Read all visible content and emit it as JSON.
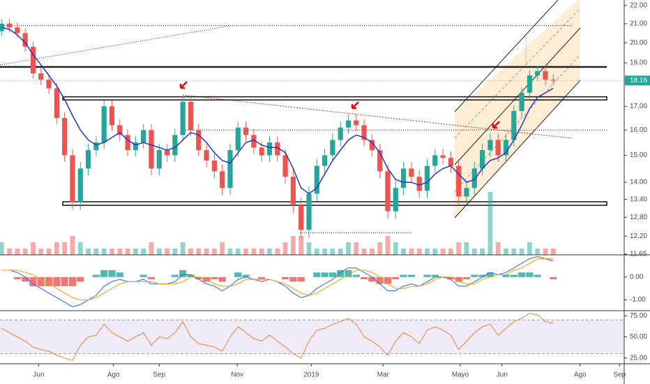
{
  "chart_data": {
    "type": "candlestick",
    "log_scale": true,
    "ylim": [
      11.63,
      22.31
    ],
    "yticks": [
      {
        "value": 22,
        "label": "22.00"
      },
      {
        "value": 21,
        "label": "21.00"
      },
      {
        "value": 20,
        "label": "20.00"
      },
      {
        "value": 19,
        "label": "19.00"
      },
      {
        "value": 17,
        "label": "17.00"
      },
      {
        "value": 16,
        "label": "16.00"
      },
      {
        "value": 15,
        "label": "15.00"
      },
      {
        "value": 14,
        "label": "14.00"
      },
      {
        "value": 13.4,
        "label": "13.40"
      },
      {
        "value": 12.8,
        "label": "12.80"
      },
      {
        "value": 12.2,
        "label": "12.20"
      },
      {
        "value": 11.65,
        "label": "11.65"
      }
    ],
    "xlim": [
      -0.2,
      79
    ],
    "xticks": [
      {
        "value": 4.7,
        "label": "Jun"
      },
      {
        "value": 14.2,
        "label": "Ago"
      },
      {
        "value": 20,
        "label": "Sep"
      },
      {
        "value": 29.9,
        "label": "Nov"
      },
      {
        "value": 39.3,
        "label": "2019"
      },
      {
        "value": 48.4,
        "label": "Mar"
      },
      {
        "value": 58.2,
        "label": "Mayo"
      },
      {
        "value": 63.5,
        "label": "Jun"
      },
      {
        "value": 73.4,
        "label": "Ago"
      },
      {
        "value": 78.4,
        "label": "Sep"
      }
    ],
    "up_color": "#26a69a",
    "down_color": "#ef5350",
    "open": [
      20.6,
      21.0,
      20.8,
      20.5,
      19.8,
      18.5,
      18.2,
      17.8,
      16.5,
      15.0,
      13.3,
      14.5,
      15.2,
      15.5,
      17.0,
      16.2,
      15.8,
      15.2,
      15.5,
      16.0,
      14.5,
      15.2,
      15.0,
      15.8,
      17.2,
      16.0,
      15.2,
      14.8,
      14.4,
      13.8,
      15.2,
      16.1,
      15.8,
      15.3,
      15.0,
      15.5,
      15.0,
      14.2,
      13.2,
      12.4,
      13.6,
      14.6,
      15.0,
      15.6,
      16.1,
      16.4,
      16.2,
      15.6,
      15.2,
      14.4,
      13.0,
      13.8,
      14.5,
      14.2,
      13.7,
      14.6,
      15.0,
      14.9,
      14.6,
      13.5,
      13.8,
      14.5,
      15.2,
      15.6,
      15.0,
      15.6,
      16.8,
      17.6,
      18.4,
      18.6,
      18.2
    ],
    "high": [
      21.25,
      21.25,
      21.05,
      20.75,
      20.05,
      18.75,
      18.45,
      18.05,
      16.75,
      15.25,
      14.75,
      15.45,
      15.75,
      17.25,
      17.25,
      16.45,
      16.05,
      15.75,
      16.25,
      16.25,
      15.45,
      15.45,
      16.05,
      17.45,
      17.45,
      16.25,
      15.45,
      15.05,
      14.65,
      15.45,
      16.35,
      16.35,
      16.05,
      15.55,
      15.75,
      15.75,
      15.25,
      14.45,
      13.45,
      13.85,
      14.85,
      15.25,
      15.85,
      16.35,
      16.65,
      16.65,
      16.45,
      15.85,
      15.45,
      14.65,
      14.05,
      14.75,
      14.75,
      14.45,
      14.85,
      15.25,
      15.25,
      15.15,
      14.85,
      14.05,
      14.75,
      15.45,
      15.85,
      15.85,
      15.85,
      17.05,
      17.85,
      18.65,
      18.85,
      18.85,
      18.45
    ],
    "low": [
      20.35,
      20.55,
      20.25,
      19.55,
      18.25,
      17.95,
      17.55,
      16.25,
      14.75,
      13.05,
      13.05,
      14.25,
      14.95,
      15.25,
      15.95,
      15.55,
      14.95,
      14.95,
      15.25,
      14.25,
      14.25,
      14.75,
      14.75,
      15.55,
      15.75,
      14.95,
      14.55,
      14.15,
      13.55,
      13.55,
      14.95,
      15.55,
      15.05,
      14.75,
      14.75,
      14.75,
      13.95,
      12.95,
      12.15,
      12.15,
      13.35,
      14.35,
      14.75,
      15.35,
      15.85,
      15.95,
      15.35,
      14.95,
      14.15,
      12.75,
      12.75,
      13.55,
      13.95,
      13.45,
      13.45,
      14.35,
      14.65,
      14.35,
      13.25,
      13.25,
      13.55,
      14.25,
      14.95,
      14.75,
      14.75,
      15.35,
      16.55,
      17.35,
      18.15,
      17.95,
      17.95
    ],
    "close": [
      21.0,
      20.8,
      20.5,
      19.8,
      18.5,
      18.2,
      17.8,
      16.5,
      15.0,
      13.3,
      14.5,
      15.2,
      15.5,
      17.0,
      16.2,
      15.8,
      15.2,
      15.5,
      16.0,
      14.5,
      15.2,
      15.0,
      15.8,
      17.2,
      16.0,
      15.2,
      14.8,
      14.4,
      13.8,
      15.2,
      16.1,
      15.8,
      15.3,
      15.0,
      15.5,
      15.0,
      14.2,
      13.2,
      12.4,
      13.6,
      14.6,
      15.0,
      15.6,
      16.1,
      16.4,
      16.2,
      15.6,
      15.2,
      14.4,
      13.0,
      13.8,
      14.5,
      14.2,
      13.7,
      14.6,
      15.0,
      14.9,
      14.6,
      13.5,
      13.8,
      14.5,
      15.2,
      15.6,
      15.0,
      15.6,
      16.8,
      17.6,
      18.4,
      18.6,
      18.2,
      18.16
    ],
    "ma": {
      "color": "#2633c9",
      "values": [
        20.8,
        20.7,
        20.4,
        20.0,
        19.4,
        18.9,
        18.4,
        17.9,
        17.3,
        16.6,
        16.0,
        15.6,
        15.4,
        15.5,
        15.7,
        15.9,
        15.6,
        15.4,
        15.5,
        15.4,
        15.3,
        15.2,
        15.3,
        15.6,
        15.9,
        15.8,
        15.5,
        15.1,
        14.8,
        14.7,
        15.1,
        15.5,
        15.6,
        15.4,
        15.3,
        15.3,
        15.1,
        14.5,
        13.8,
        13.6,
        13.8,
        14.3,
        14.8,
        15.2,
        15.6,
        15.8,
        15.7,
        15.5,
        15.1,
        14.5,
        14.1,
        14.0,
        14.0,
        13.9,
        14.0,
        14.3,
        14.5,
        14.6,
        14.3,
        14.0,
        14.1,
        14.5,
        14.8,
        14.9,
        15.1,
        15.6,
        16.2,
        16.9,
        17.4,
        17.6,
        17.8
      ]
    },
    "volume": [
      2,
      1,
      1,
      1,
      2,
      1,
      1,
      2,
      2,
      3,
      2,
      1,
      1,
      1,
      1,
      1,
      1,
      1,
      1,
      2,
      1,
      1,
      1,
      2,
      1,
      1,
      1,
      1,
      2,
      1,
      1,
      1,
      1,
      1,
      1,
      1,
      2,
      3,
      3,
      2,
      1,
      1,
      1,
      1,
      2,
      2,
      1,
      1,
      2,
      3,
      2,
      1,
      1,
      1,
      1,
      1,
      1,
      1,
      2,
      2,
      1,
      1,
      10,
      2,
      1,
      1,
      1,
      2,
      1,
      1,
      1
    ],
    "levels": [
      {
        "value": 20.9,
        "style": "dotted"
      },
      {
        "value": 18.8,
        "style": "solid"
      },
      {
        "value": 16.0,
        "style": "dotted"
      },
      {
        "value": 12.3,
        "style": "dotted"
      }
    ],
    "zones": [
      {
        "low": 17.28,
        "high": 17.42
      },
      {
        "low": 13.2,
        "high": 13.32
      }
    ],
    "last_price": 18.16,
    "macd": {
      "ylim": [
        -1.47,
        0.97
      ],
      "yticks": [
        {
          "value": 0,
          "label": "0.00"
        },
        {
          "value": -1,
          "label": "-1.00"
        }
      ],
      "macd": {
        "color": "#2962ff",
        "values": [
          0.3,
          0.3,
          0.2,
          0.0,
          -0.3,
          -0.5,
          -0.7,
          -0.9,
          -1.1,
          -1.3,
          -1.2,
          -1.0,
          -0.8,
          -0.4,
          -0.2,
          -0.1,
          -0.2,
          -0.2,
          -0.1,
          -0.3,
          -0.3,
          -0.3,
          -0.2,
          0.1,
          0.1,
          -0.1,
          -0.3,
          -0.4,
          -0.6,
          -0.4,
          -0.1,
          0.0,
          -0.1,
          -0.2,
          -0.1,
          -0.2,
          -0.4,
          -0.7,
          -0.9,
          -0.8,
          -0.5,
          -0.3,
          -0.1,
          0.2,
          0.4,
          0.4,
          0.2,
          0.0,
          -0.3,
          -0.6,
          -0.6,
          -0.4,
          -0.3,
          -0.4,
          -0.2,
          0.0,
          0.0,
          -0.1,
          -0.4,
          -0.4,
          -0.2,
          0.0,
          0.2,
          0.1,
          0.2,
          0.4,
          0.6,
          0.8,
          0.9,
          0.8,
          0.7
        ]
      },
      "signal": {
        "color": "#ff9800",
        "values": [
          0.3,
          0.3,
          0.3,
          0.2,
          0.1,
          -0.1,
          -0.3,
          -0.5,
          -0.7,
          -0.9,
          -1.0,
          -1.0,
          -0.9,
          -0.7,
          -0.5,
          -0.3,
          -0.2,
          -0.2,
          -0.2,
          -0.2,
          -0.3,
          -0.3,
          -0.3,
          -0.2,
          0.0,
          0.0,
          -0.1,
          -0.3,
          -0.4,
          -0.4,
          -0.3,
          -0.1,
          -0.1,
          -0.1,
          -0.1,
          -0.2,
          -0.3,
          -0.5,
          -0.7,
          -0.8,
          -0.7,
          -0.5,
          -0.3,
          -0.1,
          0.1,
          0.3,
          0.3,
          0.2,
          0.0,
          -0.3,
          -0.5,
          -0.5,
          -0.4,
          -0.4,
          -0.3,
          -0.1,
          0.0,
          0.0,
          -0.2,
          -0.3,
          -0.3,
          -0.1,
          0.0,
          0.1,
          0.1,
          0.3,
          0.4,
          0.6,
          0.8,
          0.8,
          0.8
        ]
      },
      "histogram": [
        0,
        0,
        -0.1,
        -0.2,
        -0.4,
        -0.4,
        -0.4,
        -0.4,
        -0.4,
        -0.4,
        -0.2,
        0,
        0.1,
        0.3,
        0.3,
        0.2,
        0,
        0,
        0.1,
        -0.1,
        0,
        0,
        0.1,
        0.3,
        0.1,
        -0.1,
        -0.2,
        -0.1,
        -0.2,
        0,
        0.2,
        0.1,
        0,
        -0.1,
        0,
        0,
        -0.1,
        -0.2,
        -0.2,
        0,
        0.2,
        0.2,
        0.2,
        0.3,
        0.3,
        0.1,
        -0.1,
        -0.2,
        -0.3,
        -0.3,
        -0.1,
        0.1,
        0.1,
        0,
        0.1,
        0.1,
        0,
        -0.1,
        -0.2,
        -0.1,
        0.1,
        0.1,
        0.2,
        0,
        0.1,
        0.1,
        0.2,
        0.2,
        0.1,
        0,
        -0.1
      ]
    },
    "rsi": {
      "ylim": [
        18.1,
        81
      ],
      "yticks": [
        {
          "value": 75,
          "label": "75.00"
        },
        {
          "value": 50,
          "label": "50.00"
        },
        {
          "value": 25,
          "label": "25.00"
        }
      ],
      "band": [
        30,
        70
      ],
      "color": "#e8823a",
      "values": [
        60,
        55,
        50,
        45,
        38,
        35,
        33,
        28,
        25,
        22,
        40,
        50,
        52,
        65,
        55,
        50,
        45,
        50,
        55,
        40,
        50,
        48,
        55,
        68,
        50,
        42,
        40,
        38,
        33,
        50,
        62,
        55,
        48,
        45,
        52,
        45,
        38,
        30,
        25,
        45,
        58,
        60,
        65,
        68,
        72,
        65,
        50,
        45,
        38,
        28,
        45,
        55,
        50,
        42,
        58,
        62,
        58,
        52,
        35,
        45,
        55,
        62,
        65,
        52,
        60,
        68,
        72,
        78,
        76,
        68,
        66
      ]
    }
  }
}
